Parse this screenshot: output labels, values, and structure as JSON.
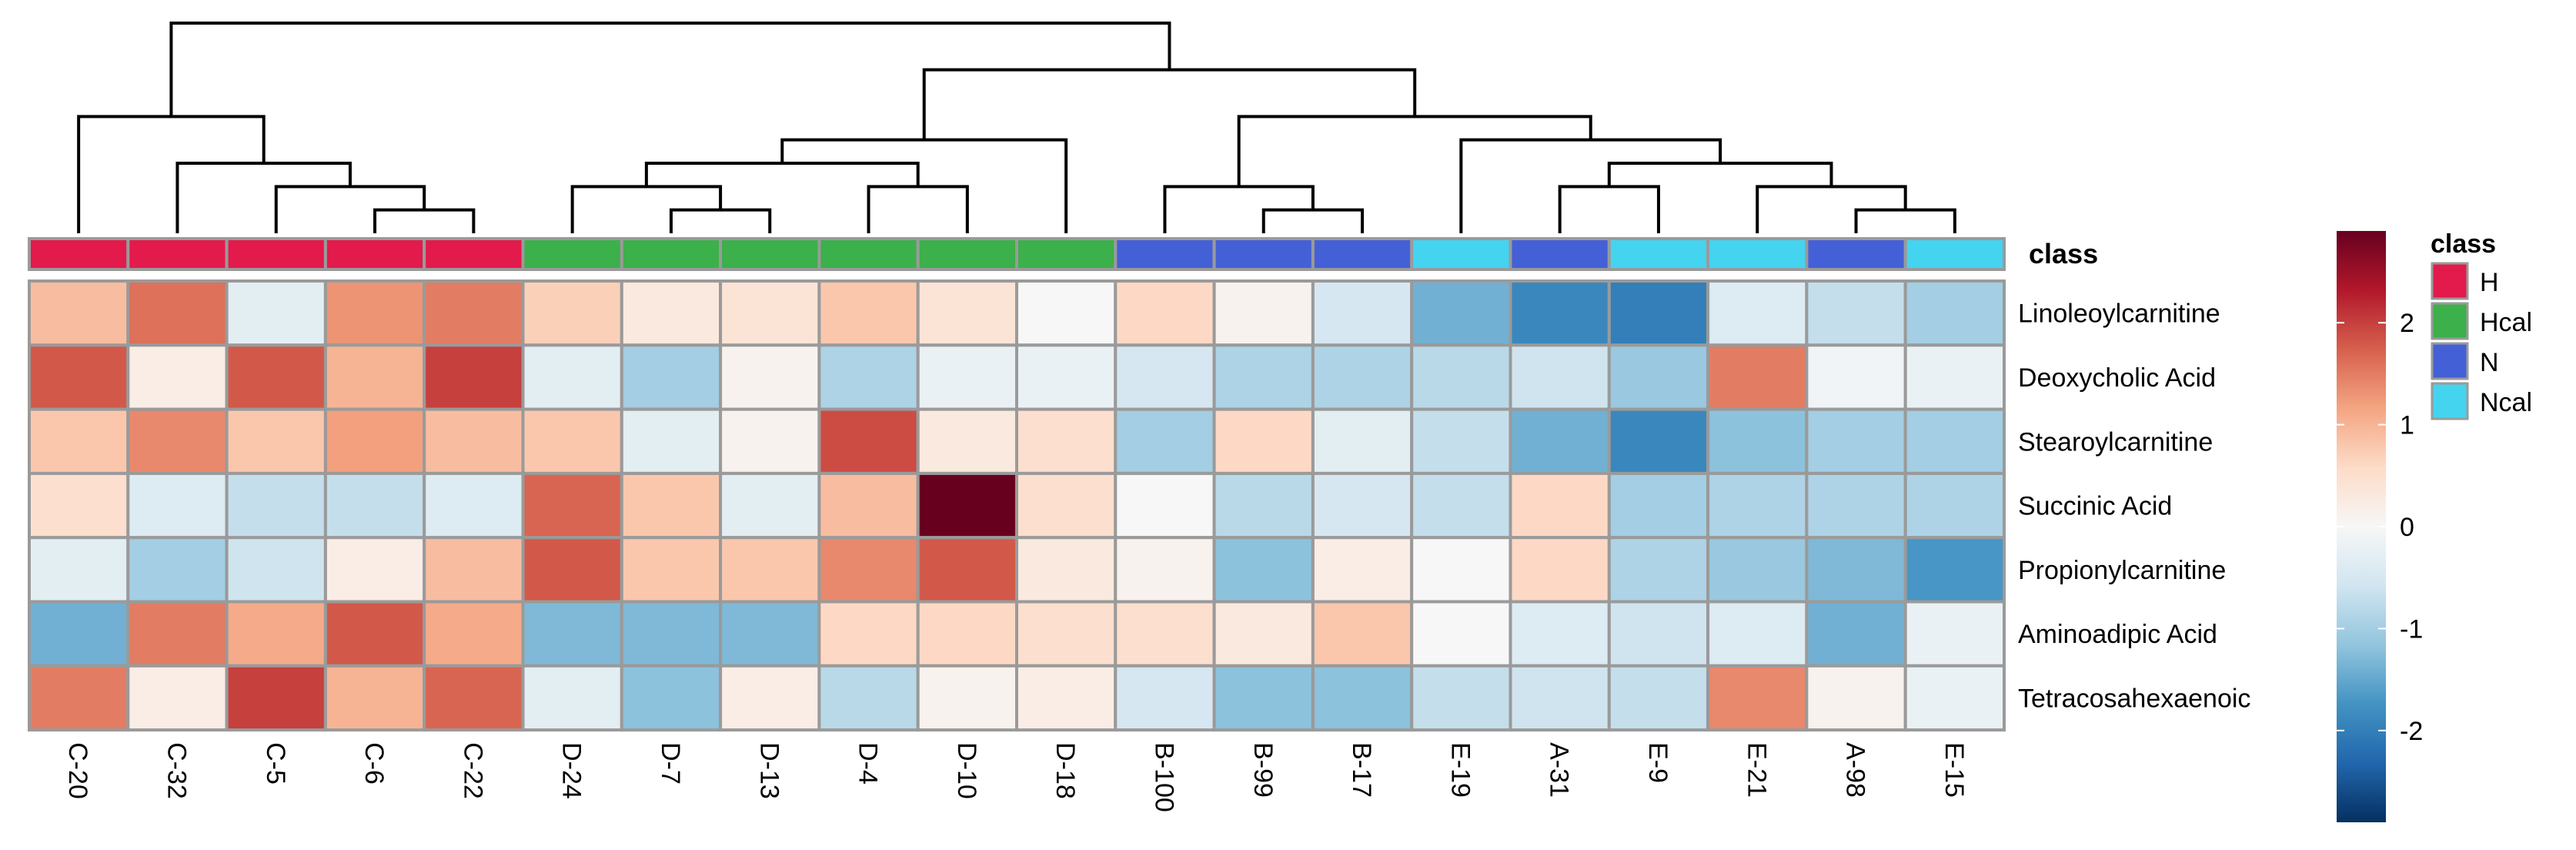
{
  "chart_data": {
    "type": "heatmap",
    "columns": [
      "C-20",
      "C-32",
      "C-5",
      "C-6",
      "C-22",
      "D-24",
      "D-7",
      "D-13",
      "D-4",
      "D-10",
      "D-18",
      "B-100",
      "B-99",
      "B-17",
      "E-19",
      "A-31",
      "E-9",
      "E-21",
      "A-98",
      "E-15"
    ],
    "rows": [
      "Linoleoylcarnitine",
      "Deoxycholic Acid",
      "Stearoylcarnitine",
      "Succinic Acid",
      "Propionylcarnitine",
      "Aminoadipic Acid",
      "Tetracosahexaenoic"
    ],
    "class_label": "class",
    "column_classes": [
      "H",
      "H",
      "H",
      "H",
      "H",
      "Hcal",
      "Hcal",
      "Hcal",
      "Hcal",
      "Hcal",
      "Hcal",
      "N",
      "N",
      "N",
      "Ncal",
      "N",
      "Ncal",
      "Ncal",
      "N",
      "Ncal"
    ],
    "class_colors": {
      "H": "#E31A4C",
      "Hcal": "#3CB04A",
      "N": "#4460D6",
      "Ncal": "#44D4F0"
    },
    "legend": {
      "title": "class",
      "entries": [
        "H",
        "Hcal",
        "N",
        "Ncal"
      ]
    },
    "colorbar": {
      "ticks": [
        2,
        1,
        0,
        -1,
        -2
      ],
      "range": [
        -2.9,
        2.9
      ]
    },
    "palette": [
      "#053061",
      "#2166AC",
      "#4393C3",
      "#92C5DE",
      "#D1E5F0",
      "#F7F7F7",
      "#FDDBC7",
      "#F4A582",
      "#D6604D",
      "#B2182B",
      "#67001F"
    ],
    "values": [
      [
        0.9,
        1.6,
        -0.3,
        1.3,
        1.5,
        0.7,
        0.3,
        0.4,
        0.8,
        0.4,
        0.0,
        0.6,
        0.1,
        -0.5,
        -1.4,
        -1.9,
        -2.0,
        -0.4,
        -0.7,
        -1.0
      ],
      [
        1.8,
        0.2,
        1.8,
        1.0,
        2.0,
        -0.3,
        -1.0,
        0.1,
        -0.9,
        -0.2,
        -0.2,
        -0.5,
        -0.9,
        -0.9,
        -0.8,
        -0.6,
        -1.1,
        1.5,
        -0.1,
        -0.2
      ],
      [
        0.8,
        1.4,
        0.8,
        1.2,
        0.9,
        0.8,
        -0.3,
        0.1,
        1.9,
        0.3,
        0.5,
        -1.0,
        0.6,
        -0.3,
        -0.7,
        -1.4,
        -1.9,
        -1.2,
        -1.0,
        -1.0
      ],
      [
        0.5,
        -0.4,
        -0.7,
        -0.7,
        -0.4,
        1.7,
        0.8,
        -0.3,
        0.9,
        2.9,
        0.5,
        0.0,
        -0.8,
        -0.5,
        -0.7,
        0.6,
        -1.0,
        -0.9,
        -0.9,
        -0.9
      ],
      [
        -0.3,
        -1.0,
        -0.6,
        0.2,
        0.9,
        1.8,
        0.8,
        0.8,
        1.4,
        1.8,
        0.3,
        0.1,
        -1.2,
        0.2,
        0.0,
        0.6,
        -0.9,
        -1.1,
        -1.3,
        -1.7
      ],
      [
        -1.4,
        1.5,
        1.1,
        1.8,
        1.1,
        -1.3,
        -1.3,
        -1.3,
        0.6,
        0.6,
        0.5,
        0.5,
        0.3,
        0.8,
        0.0,
        -0.4,
        -0.6,
        -0.4,
        -1.4,
        -0.2
      ],
      [
        1.5,
        0.2,
        2.0,
        1.0,
        1.7,
        -0.3,
        -1.2,
        0.2,
        -0.8,
        0.1,
        0.2,
        -0.5,
        -1.2,
        -1.2,
        -0.7,
        -0.6,
        -0.7,
        1.4,
        0.1,
        -0.2
      ]
    ],
    "dendrogram_links": [
      [
        3,
        4,
        1
      ],
      [
        2,
        20,
        2
      ],
      [
        1,
        21,
        3
      ],
      [
        0,
        22,
        5
      ],
      [
        6,
        7,
        1
      ],
      [
        5,
        24,
        2
      ],
      [
        8,
        9,
        2
      ],
      [
        25,
        26,
        3
      ],
      [
        10,
        27,
        4
      ],
      [
        12,
        13,
        1
      ],
      [
        11,
        29,
        2
      ],
      [
        18,
        19,
        1
      ],
      [
        17,
        31,
        2
      ],
      [
        15,
        16,
        2
      ],
      [
        33,
        32,
        3
      ],
      [
        14,
        34,
        4
      ],
      [
        30,
        35,
        5
      ],
      [
        28,
        36,
        7
      ],
      [
        23,
        37,
        9
      ]
    ],
    "dendrogram_max_height": 9
  }
}
